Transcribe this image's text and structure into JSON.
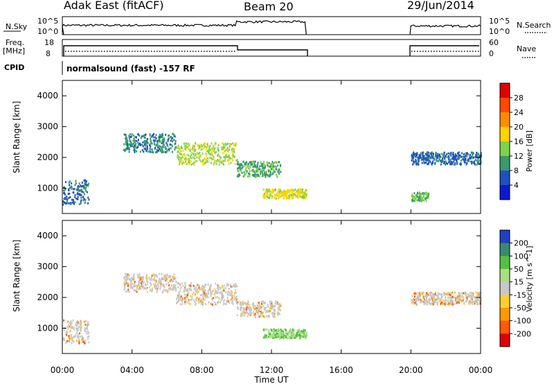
{
  "header": {
    "title_left": "Adak East (fitACF)",
    "title_center": "Beam 20",
    "title_right": "29/Jun/2014",
    "nsky_label": "N.Sky",
    "nsearch_label": "N.Search",
    "log_tick_hi": "10^5",
    "log_tick_lo": "10^0",
    "freq_label": "Freq.",
    "freq_unit": "[MHz]",
    "freq_ticks": [
      "18",
      "8"
    ],
    "nave_label": "Nave",
    "nave_ticks": [
      "60",
      "0"
    ],
    "cpid_label": "CPID",
    "cpid_text": "normalsound (fast) -157 RF"
  },
  "chart_data": [
    {
      "type": "heatmap",
      "panel": "power",
      "ylabel": "Slant Range [km]",
      "xlabel": "Time UT",
      "ylim": [
        180,
        4500
      ],
      "yticks": [
        "4000",
        "3000",
        "2000",
        "1000"
      ],
      "xlim": [
        "00:00",
        "24:00"
      ],
      "xticks": [
        "00:00",
        "04:00",
        "08:00",
        "12:00",
        "16:00",
        "20:00",
        "00:00"
      ],
      "colorbar": {
        "label": "Power [dB]",
        "ticks": [
          "28",
          "24",
          "20",
          "16",
          "12",
          "8",
          "4"
        ],
        "colors": [
          "#e00000",
          "#ff4a00",
          "#ff8c00",
          "#ffd400",
          "#7fd24a",
          "#3a9a6a",
          "#2050c0",
          "#0a1ad0"
        ]
      },
      "data_gap": [
        "14:00",
        "20:00"
      ],
      "scatter_bands": [
        {
          "t0": 0.0,
          "t1": 1.5,
          "r0": 500,
          "r1": 1300,
          "level": 4
        },
        {
          "t0": 3.5,
          "t1": 6.5,
          "r0": 2200,
          "r1": 2800,
          "level": 6
        },
        {
          "t0": 6.5,
          "t1": 10.0,
          "r0": 1800,
          "r1": 2500,
          "level": 12
        },
        {
          "t0": 10.0,
          "t1": 12.5,
          "r0": 1400,
          "r1": 1900,
          "level": 8
        },
        {
          "t0": 11.5,
          "t1": 14.0,
          "r0": 700,
          "r1": 1000,
          "level": 14
        },
        {
          "t0": 20.0,
          "t1": 24.0,
          "r0": 1800,
          "r1": 2200,
          "level": 4
        },
        {
          "t0": 20.0,
          "t1": 21.0,
          "r0": 600,
          "r1": 900,
          "level": 10
        }
      ]
    },
    {
      "type": "heatmap",
      "panel": "velocity",
      "ylabel": "Slant Range [km]",
      "xlabel": "Time UT",
      "ylim": [
        180,
        4500
      ],
      "yticks": [
        "4000",
        "3000",
        "2000",
        "1000"
      ],
      "xlim": [
        "00:00",
        "24:00"
      ],
      "xticks": [
        "00:00",
        "04:00",
        "08:00",
        "12:00",
        "16:00",
        "20:00",
        "00:00"
      ],
      "colorbar": {
        "label": "Velocity [m s^-1]",
        "ticks": [
          "200",
          "100",
          "50",
          "15",
          "-15",
          "-50",
          "-100",
          "-200"
        ],
        "colors": [
          "#2040c0",
          "#3a8a70",
          "#55c040",
          "#a8e080",
          "#c8c8c8",
          "#ffd030",
          "#ff9a00",
          "#ff5a00",
          "#e00000"
        ]
      },
      "data_gap": [
        "14:00",
        "20:00"
      ],
      "scatter_bands": [
        {
          "t0": 0.0,
          "t1": 1.5,
          "r0": 500,
          "r1": 1300,
          "vel": 0
        },
        {
          "t0": 3.5,
          "t1": 6.5,
          "r0": 2200,
          "r1": 2800,
          "vel": 0
        },
        {
          "t0": 6.5,
          "t1": 10.0,
          "r0": 1800,
          "r1": 2500,
          "vel": 0
        },
        {
          "t0": 10.0,
          "t1": 12.5,
          "r0": 1400,
          "r1": 1900,
          "vel": 0
        },
        {
          "t0": 11.5,
          "t1": 14.0,
          "r0": 700,
          "r1": 1000,
          "vel": 60
        },
        {
          "t0": 20.0,
          "t1": 24.0,
          "r0": 1800,
          "r1": 2200,
          "vel": 0
        }
      ]
    }
  ]
}
